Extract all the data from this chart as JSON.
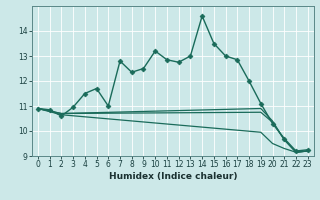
{
  "title": "",
  "xlabel": "Humidex (Indice chaleur)",
  "ylabel": "",
  "bg_color": "#cce8e8",
  "line_color": "#1a6b5a",
  "grid_color": "#ffffff",
  "xlim": [
    -0.5,
    23.5
  ],
  "ylim": [
    9,
    15
  ],
  "yticks": [
    9,
    10,
    11,
    12,
    13,
    14
  ],
  "xticks": [
    0,
    1,
    2,
    3,
    4,
    5,
    6,
    7,
    8,
    9,
    10,
    11,
    12,
    13,
    14,
    15,
    16,
    17,
    18,
    19,
    20,
    21,
    22,
    23
  ],
  "series": [
    {
      "x": [
        0,
        1,
        2,
        3,
        4,
        5,
        6,
        7,
        8,
        9,
        10,
        11,
        12,
        13,
        14,
        15,
        16,
        17,
        18,
        19,
        20,
        21,
        22,
        23
      ],
      "y": [
        10.9,
        10.85,
        10.6,
        10.95,
        11.5,
        11.7,
        11.0,
        12.8,
        12.35,
        12.5,
        13.2,
        12.85,
        12.75,
        13.0,
        14.6,
        13.5,
        13.0,
        12.85,
        12.0,
        11.1,
        10.3,
        9.7,
        9.2,
        9.25
      ],
      "marker": "D",
      "markersize": 2.5,
      "linewidth": 1.0
    },
    {
      "x": [
        0,
        2,
        19,
        20,
        21,
        22,
        23
      ],
      "y": [
        10.9,
        10.7,
        10.9,
        10.4,
        9.65,
        9.15,
        9.2
      ],
      "marker": null,
      "markersize": 0,
      "linewidth": 0.9
    },
    {
      "x": [
        0,
        2,
        19,
        20,
        21,
        22,
        23
      ],
      "y": [
        10.9,
        10.7,
        10.75,
        10.35,
        9.65,
        9.15,
        9.2
      ],
      "marker": null,
      "markersize": 0,
      "linewidth": 0.9
    },
    {
      "x": [
        0,
        2,
        19,
        20,
        21,
        22,
        23
      ],
      "y": [
        10.9,
        10.65,
        9.95,
        9.5,
        9.3,
        9.15,
        9.2
      ],
      "marker": null,
      "markersize": 0,
      "linewidth": 0.9
    }
  ]
}
